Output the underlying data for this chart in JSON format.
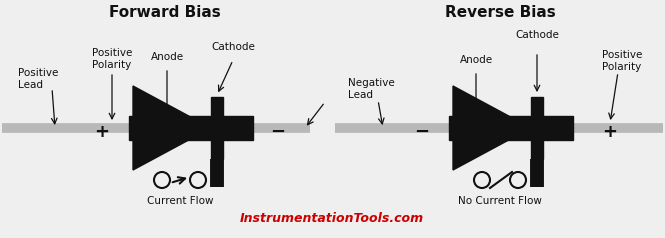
{
  "title_left": "Forward Bias",
  "title_right": "Reverse Bias",
  "bg_color": "#efefef",
  "wire_color": "#b8b8b8",
  "diode_color": "#111111",
  "text_color": "#111111",
  "red_text_color": "#cc0000",
  "website": "InstrumentationTools.com",
  "fig_w": 6.65,
  "fig_h": 2.38,
  "dpi": 100
}
